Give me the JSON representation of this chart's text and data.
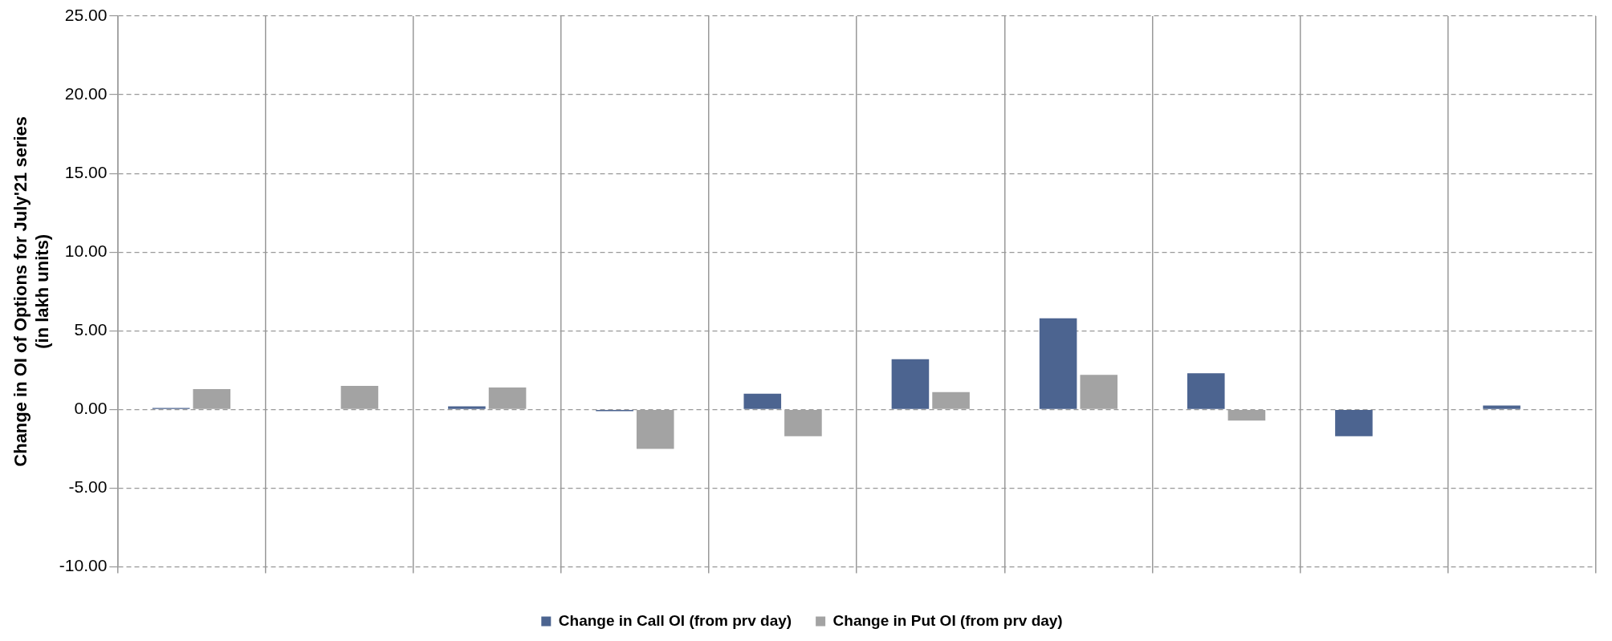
{
  "chart_data": {
    "type": "bar",
    "ylabel": "Change in OI of Options for July'21 series\n(in lakh units)",
    "categories": [
      null,
      null,
      null,
      null,
      null,
      null,
      null,
      null,
      null,
      null
    ],
    "series": [
      {
        "name": "Change in Call OI (from prv day)",
        "color": "#4c6490",
        "values": [
          0.1,
          0.0,
          0.2,
          -0.1,
          1.0,
          3.2,
          5.8,
          2.3,
          -1.7,
          0.25
        ]
      },
      {
        "name": "Change in Put OI (from prv day)",
        "color": "#a3a3a3",
        "values": [
          1.3,
          1.5,
          1.4,
          -2.5,
          -1.7,
          1.1,
          2.2,
          -0.7,
          0.0,
          0.0
        ]
      }
    ],
    "ylim": [
      -10,
      25
    ],
    "yticks": [
      {
        "value": -10,
        "label": "-10.00"
      },
      {
        "value": -5,
        "label": "-5.00"
      },
      {
        "value": 0,
        "label": "0.00"
      },
      {
        "value": 5,
        "label": "5.00"
      },
      {
        "value": 10,
        "label": "10.00"
      },
      {
        "value": 15,
        "label": "15.00"
      },
      {
        "value": 20,
        "label": "20.00"
      },
      {
        "value": 25,
        "label": "25.00"
      }
    ],
    "grid": true,
    "legend": "bottom"
  }
}
